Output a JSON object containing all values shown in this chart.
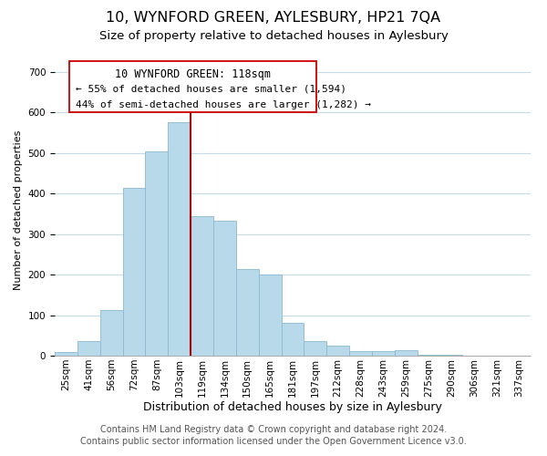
{
  "title": "10, WYNFORD GREEN, AYLESBURY, HP21 7QA",
  "subtitle": "Size of property relative to detached houses in Aylesbury",
  "xlabel": "Distribution of detached houses by size in Aylesbury",
  "ylabel": "Number of detached properties",
  "footer_lines": [
    "Contains HM Land Registry data © Crown copyright and database right 2024.",
    "Contains public sector information licensed under the Open Government Licence v3.0."
  ],
  "categories": [
    "25sqm",
    "41sqm",
    "56sqm",
    "72sqm",
    "87sqm",
    "103sqm",
    "119sqm",
    "134sqm",
    "150sqm",
    "165sqm",
    "181sqm",
    "197sqm",
    "212sqm",
    "228sqm",
    "243sqm",
    "259sqm",
    "275sqm",
    "290sqm",
    "306sqm",
    "321sqm",
    "337sqm"
  ],
  "values": [
    8,
    37,
    112,
    413,
    505,
    576,
    344,
    332,
    213,
    200,
    80,
    37,
    25,
    12,
    12,
    13,
    3,
    2,
    1,
    1,
    1
  ],
  "bar_color": "#b8d9ea",
  "bar_edge_color": "#8cb8d0",
  "highlight_bar_index": 6,
  "highlight_line_color": "#aa0000",
  "annotation_line1": "10 WYNFORD GREEN: 118sqm",
  "annotation_line2": "← 55% of detached houses are smaller (1,594)",
  "annotation_line3": "44% of semi-detached houses are larger (1,282) →",
  "ylim": [
    0,
    720
  ],
  "yticks": [
    0,
    100,
    200,
    300,
    400,
    500,
    600,
    700
  ],
  "title_fontsize": 11.5,
  "subtitle_fontsize": 9.5,
  "xlabel_fontsize": 9,
  "ylabel_fontsize": 8,
  "tick_fontsize": 7.5,
  "footer_fontsize": 7,
  "ann_fontsize": 8.5
}
